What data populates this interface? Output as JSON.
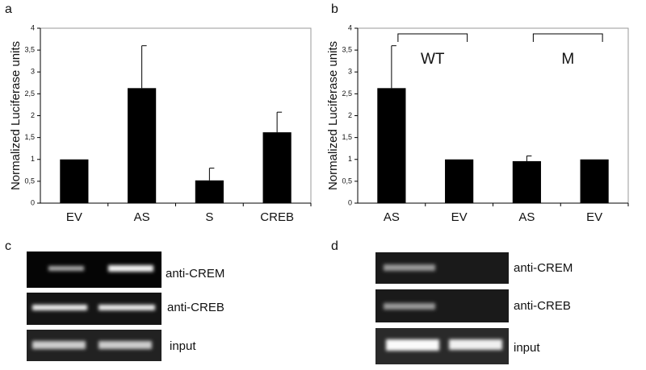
{
  "chart_data": [
    {
      "type": "bar",
      "label": "a",
      "y_label": "Normalized Luciferase units",
      "categories": [
        "EV",
        "AS",
        "S",
        "CREB"
      ],
      "values": [
        1.0,
        2.63,
        0.52,
        1.62
      ],
      "errors": [
        null,
        0.97,
        0.28,
        0.46
      ],
      "color": "#000000",
      "ylim": [
        0,
        4
      ],
      "yticks": [
        0,
        {
          "value": 0.5,
          "label": "0,5"
        },
        1,
        {
          "value": 1.5,
          "label": "1,5"
        },
        2,
        {
          "value": 2.5,
          "label": "2,5"
        },
        3,
        {
          "value": 3.5,
          "label": "3,5"
        },
        4
      ],
      "grid": false
    },
    {
      "type": "bar",
      "label": "b",
      "y_label": "Normalized Luciferase units",
      "categories": [
        "AS",
        "EV",
        "AS",
        "EV"
      ],
      "values": [
        2.63,
        1.0,
        0.96,
        1.0
      ],
      "errors": [
        0.97,
        null,
        0.12,
        null
      ],
      "color": "#000000",
      "ylim": [
        0,
        4
      ],
      "yticks": [
        0,
        {
          "value": 0.5,
          "label": "0,5"
        },
        1,
        {
          "value": 1.5,
          "label": "1,5"
        },
        2,
        {
          "value": 2.5,
          "label": "2,5"
        },
        3,
        {
          "value": 3.5,
          "label": "3,5"
        },
        4
      ],
      "groups": [
        {
          "label": "WT",
          "span": [
            0,
            1
          ]
        },
        {
          "label": "M",
          "span": [
            2,
            3
          ]
        }
      ],
      "grid": false
    }
  ],
  "gels": [
    {
      "label": "c",
      "rows": [
        "anti-CREM",
        "anti-CREB",
        "input"
      ]
    },
    {
      "label": "d",
      "rows": [
        "anti-CREM",
        "anti-CREB",
        "input"
      ]
    }
  ]
}
